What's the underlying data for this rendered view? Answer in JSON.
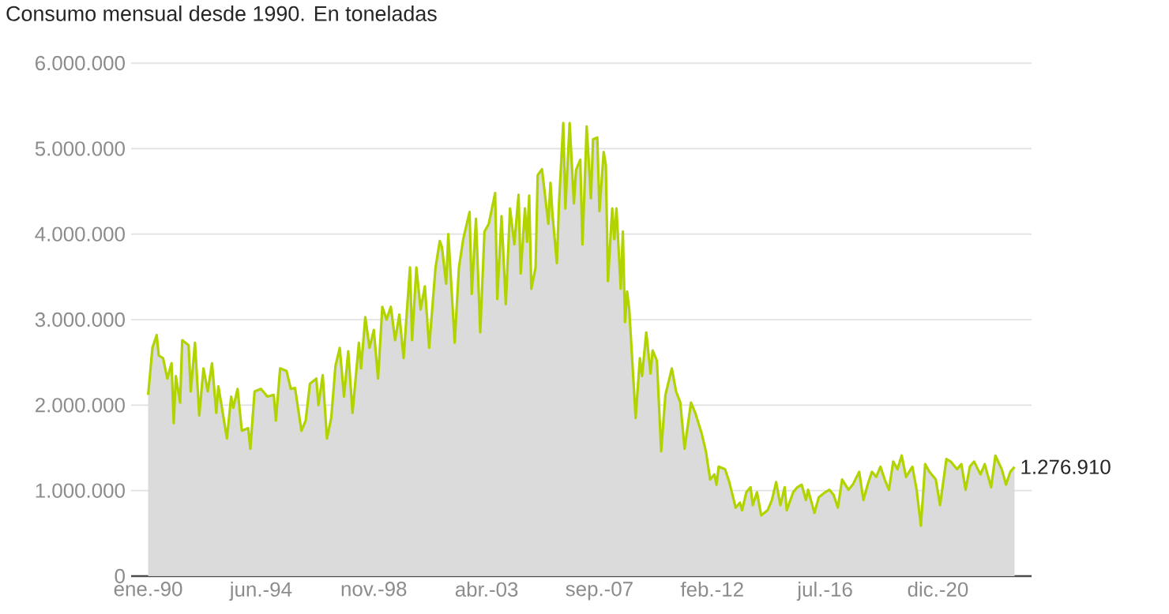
{
  "chart_data": {
    "type": "area",
    "title": "Consumo mensual desde 1990. En toneladas",
    "xlim": [
      "1989-05",
      "2024-08"
    ],
    "xticks": [
      {
        "value": "1990-01",
        "label": "ene.-90"
      },
      {
        "value": "1994-06",
        "label": "jun.-94"
      },
      {
        "value": "1998-11",
        "label": "nov.-98"
      },
      {
        "value": "2003-04",
        "label": "abr.-03"
      },
      {
        "value": "2007-09",
        "label": "sep.-07"
      },
      {
        "value": "2012-02",
        "label": "feb.-12"
      },
      {
        "value": "2016-07",
        "label": "jul.-16"
      },
      {
        "value": "2020-12",
        "label": "dic.-20"
      }
    ],
    "ylim": [
      0,
      6000000
    ],
    "yticks": [
      0,
      {
        "value": 1000000,
        "label": "1.000.000"
      },
      {
        "value": 2000000,
        "label": "2.000.000"
      },
      {
        "value": 3000000,
        "label": "3.000.000"
      },
      {
        "value": 4000000,
        "label": "4.000.000"
      },
      {
        "value": 5000000,
        "label": "5.000.000"
      },
      {
        "value": 6000000,
        "label": "6.000.000"
      }
    ],
    "grid": "y",
    "legend": false,
    "annotations": [
      {
        "text": "1.276.910",
        "x": "2023-12",
        "y": 1276910
      }
    ],
    "series": [
      {
        "color": "#b2d300",
        "x": [
          "1990-01",
          "1990-03",
          "1990-05",
          "1990-06",
          "1990-08",
          "1990-10",
          "1990-12",
          "1991-01",
          "1991-02",
          "1991-04",
          "1991-05",
          "1991-08",
          "1991-09",
          "1991-11",
          "1992-01",
          "1992-03",
          "1992-05",
          "1992-07",
          "1992-09",
          "1992-10",
          "1993-02",
          "1993-04",
          "1993-05",
          "1993-07",
          "1993-09",
          "1993-12",
          "1994-01",
          "1994-03",
          "1994-06",
          "1994-09",
          "1994-12",
          "1995-01",
          "1995-03",
          "1995-06",
          "1995-08",
          "1995-10",
          "1996-01",
          "1996-03",
          "1996-05",
          "1996-08",
          "1996-09",
          "1996-11",
          "1997-01",
          "1997-03",
          "1997-05",
          "1997-07",
          "1997-09",
          "1997-11",
          "1998-01",
          "1998-04",
          "1998-05",
          "1998-07",
          "1998-09",
          "1998-11",
          "1999-01",
          "1999-03",
          "1999-05",
          "1999-07",
          "1999-09",
          "1999-11",
          "2000-01",
          "2000-04",
          "2000-05",
          "2000-07",
          "2000-09",
          "2000-11",
          "2001-01",
          "2001-04",
          "2001-06",
          "2001-07",
          "2001-09",
          "2001-10",
          "2002-01",
          "2002-03",
          "2002-05",
          "2002-08",
          "2002-09",
          "2002-11",
          "2003-01",
          "2003-03",
          "2003-05",
          "2003-08",
          "2003-09",
          "2003-11",
          "2004-01",
          "2004-03",
          "2004-05",
          "2004-07",
          "2004-08",
          "2004-10",
          "2004-11",
          "2004-12",
          "2005-01",
          "2005-03",
          "2005-04",
          "2005-06",
          "2005-09",
          "2005-10",
          "2005-11",
          "2006-01",
          "2006-02",
          "2006-04",
          "2006-05",
          "2006-07",
          "2006-09",
          "2006-10",
          "2006-12",
          "2007-01",
          "2007-02",
          "2007-03",
          "2007-05",
          "2007-06",
          "2007-08",
          "2007-09",
          "2007-11",
          "2007-12",
          "2008-01",
          "2008-03",
          "2008-04",
          "2008-05",
          "2008-07",
          "2008-08",
          "2008-09",
          "2008-10",
          "2008-11",
          "2009-02",
          "2009-04",
          "2009-05",
          "2009-07",
          "2009-09",
          "2009-10",
          "2009-12",
          "2010-02",
          "2010-04",
          "2010-07",
          "2010-09",
          "2010-11",
          "2011-01",
          "2011-04",
          "2011-06",
          "2011-09",
          "2011-11",
          "2012-01",
          "2012-03",
          "2012-04",
          "2012-05",
          "2012-08",
          "2012-10",
          "2013-01",
          "2013-03",
          "2013-04",
          "2013-06",
          "2013-08",
          "2013-09",
          "2013-11",
          "2014-01",
          "2014-04",
          "2014-06",
          "2014-08",
          "2014-10",
          "2014-12",
          "2015-01",
          "2015-04",
          "2015-06",
          "2015-08",
          "2015-10",
          "2015-11",
          "2016-02",
          "2016-04",
          "2016-07",
          "2016-09",
          "2016-11",
          "2017-01",
          "2017-03",
          "2017-06",
          "2017-08",
          "2017-11",
          "2018-01",
          "2018-03",
          "2018-05",
          "2018-07",
          "2018-09",
          "2018-11",
          "2019-01",
          "2019-03",
          "2019-05",
          "2019-07",
          "2019-09",
          "2019-12",
          "2020-02",
          "2020-04",
          "2020-06",
          "2020-08",
          "2020-11",
          "2021-01",
          "2021-04",
          "2021-06",
          "2021-09",
          "2021-11",
          "2022-01",
          "2022-03",
          "2022-05",
          "2022-08",
          "2022-10",
          "2023-01",
          "2023-03",
          "2023-06",
          "2023-08",
          "2023-10",
          "2023-12"
        ],
        "values": [
          2120000,
          2670000,
          2820000,
          2580000,
          2550000,
          2310000,
          2490000,
          1790000,
          2340000,
          2030000,
          2760000,
          2700000,
          2160000,
          2730000,
          1880000,
          2430000,
          2160000,
          2490000,
          1910000,
          2220000,
          1610000,
          2100000,
          1970000,
          2190000,
          1700000,
          1730000,
          1490000,
          2160000,
          2190000,
          2100000,
          2120000,
          1820000,
          2430000,
          2400000,
          2190000,
          2200000,
          1700000,
          1820000,
          2250000,
          2310000,
          2000000,
          2350000,
          1610000,
          1850000,
          2460000,
          2670000,
          2100000,
          2630000,
          1910000,
          2730000,
          2430000,
          3030000,
          2670000,
          2880000,
          2310000,
          3150000,
          3000000,
          3150000,
          2760000,
          3060000,
          2550000,
          3610000,
          2760000,
          3610000,
          3120000,
          3390000,
          2670000,
          3610000,
          3920000,
          3850000,
          3420000,
          4000000,
          2730000,
          3610000,
          3940000,
          4260000,
          3300000,
          4180000,
          2850000,
          4030000,
          4120000,
          4480000,
          3240000,
          4210000,
          3180000,
          4300000,
          3880000,
          4460000,
          3540000,
          4300000,
          3910000,
          4450000,
          3360000,
          3610000,
          4690000,
          4760000,
          4120000,
          4600000,
          4210000,
          3660000,
          4360000,
          5300000,
          4300000,
          5300000,
          4360000,
          4750000,
          4870000,
          3880000,
          4540000,
          5260000,
          4420000,
          5110000,
          5130000,
          4270000,
          4960000,
          4810000,
          3450000,
          4300000,
          3940000,
          4300000,
          3360000,
          4030000,
          2970000,
          3330000,
          3120000,
          1850000,
          2550000,
          2340000,
          2850000,
          2370000,
          2640000,
          2520000,
          1460000,
          2120000,
          2430000,
          2160000,
          2030000,
          1490000,
          2030000,
          1910000,
          1670000,
          1460000,
          1130000,
          1190000,
          1070000,
          1280000,
          1250000,
          1100000,
          800000,
          860000,
          770000,
          980000,
          1040000,
          830000,
          980000,
          710000,
          770000,
          890000,
          1100000,
          830000,
          1040000,
          770000,
          980000,
          1040000,
          1070000,
          890000,
          1010000,
          740000,
          920000,
          980000,
          1010000,
          950000,
          800000,
          1130000,
          1010000,
          1070000,
          1220000,
          890000,
          1070000,
          1220000,
          1160000,
          1280000,
          1130000,
          1010000,
          1340000,
          1250000,
          1410000,
          1160000,
          1280000,
          1010000,
          590000,
          1310000,
          1220000,
          1130000,
          830000,
          1370000,
          1340000,
          1250000,
          1310000,
          1010000,
          1280000,
          1340000,
          1190000,
          1310000,
          1040000,
          1410000,
          1250000,
          1070000,
          1220000,
          1276910
        ]
      }
    ]
  }
}
